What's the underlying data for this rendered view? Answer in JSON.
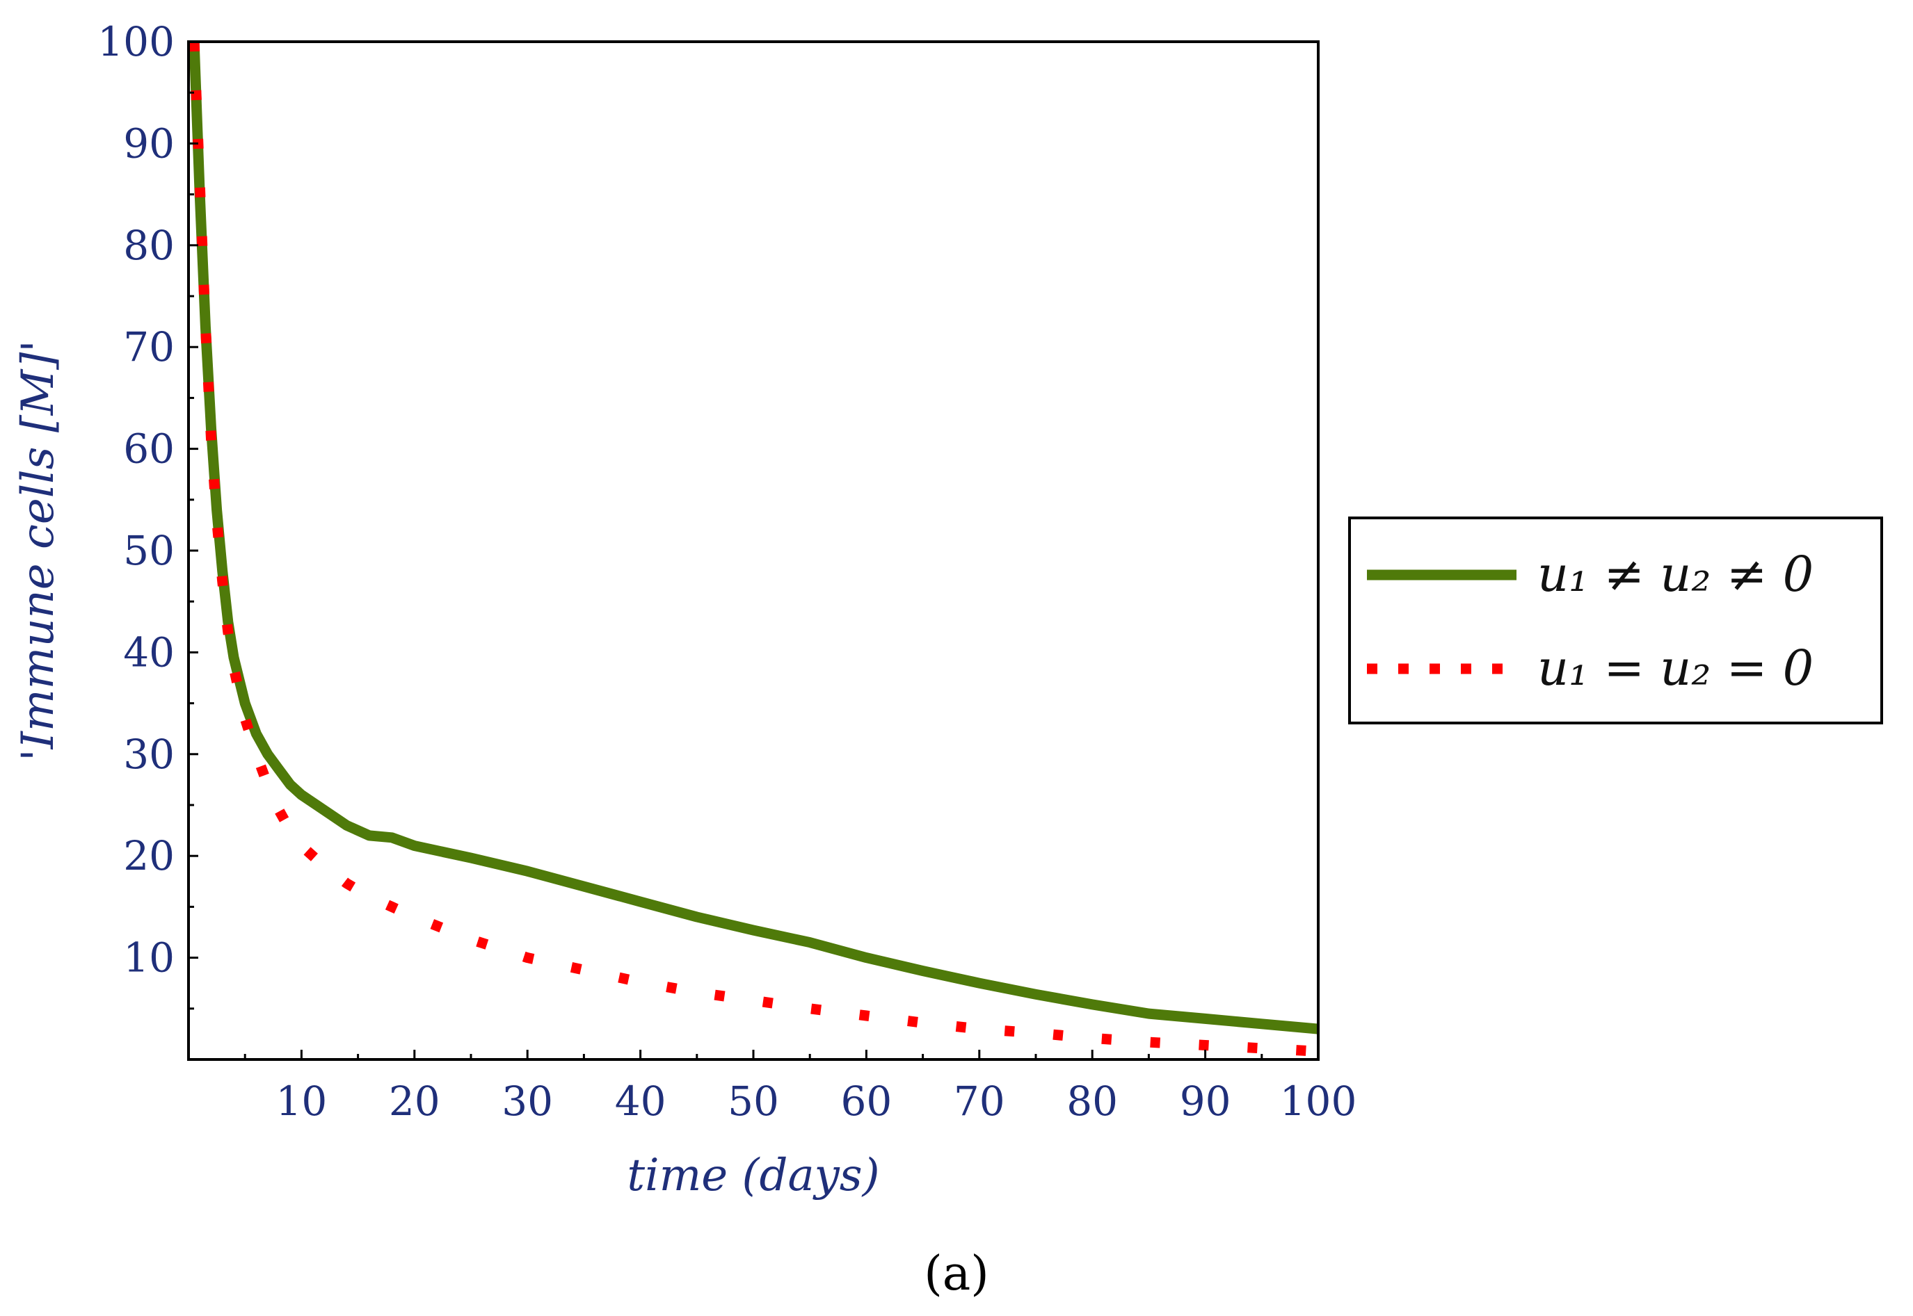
{
  "chart_data": {
    "type": "line",
    "title": "",
    "xlabel": "time (days)",
    "ylabel": "'Immune cells [M]'",
    "xlim": [
      0,
      100
    ],
    "ylim": [
      0,
      100
    ],
    "xticks": [
      10,
      20,
      30,
      40,
      50,
      60,
      70,
      80,
      90,
      100
    ],
    "yticks": [
      10,
      20,
      30,
      40,
      50,
      60,
      70,
      80,
      90,
      100
    ],
    "xtick_labels": [
      "10",
      "20",
      "30",
      "40",
      "50",
      "60",
      "70",
      "80",
      "90",
      "100"
    ],
    "ytick_labels": [
      "10",
      "20",
      "30",
      "40",
      "50",
      "60",
      "70",
      "80",
      "90",
      "100"
    ],
    "grid": false,
    "legend_position": "right",
    "caption": "(a)",
    "series": [
      {
        "name": "u1 ≠ u2 ≠ 0",
        "legend_label": "u₁ ≠ u₂ ≠ 0",
        "style": "solid",
        "color": "#4f7a0a",
        "x": [
          0.5,
          1,
          1.5,
          2,
          2.5,
          3,
          3.5,
          4,
          5,
          6,
          7,
          8,
          9,
          10,
          12,
          14,
          16,
          18,
          20,
          25,
          30,
          35,
          40,
          45,
          50,
          55,
          60,
          65,
          70,
          75,
          80,
          85,
          90,
          95,
          100
        ],
        "values": [
          100,
          85,
          72,
          62,
          54,
          48,
          43,
          39.5,
          35,
          32,
          30,
          28.5,
          27,
          26,
          24.5,
          23,
          22,
          21.8,
          21,
          19.8,
          18.5,
          17,
          15.5,
          14,
          12.7,
          11.5,
          10,
          8.7,
          7.5,
          6.4,
          5.4,
          4.5,
          4,
          3.5,
          3
        ]
      },
      {
        "name": "u1 = u2 = 0",
        "legend_label": "u₁ = u₂ = 0",
        "style": "dotted",
        "color": "#ff0000",
        "x": [
          0.5,
          1,
          1.5,
          2,
          2.5,
          3,
          3.5,
          4,
          5,
          6,
          7,
          8,
          9,
          10,
          12,
          14,
          16,
          18,
          20,
          25,
          30,
          35,
          40,
          45,
          50,
          55,
          60,
          65,
          70,
          75,
          80,
          85,
          90,
          95,
          100
        ],
        "values": [
          100,
          86,
          72,
          61,
          53,
          47,
          42,
          38.5,
          33.5,
          30,
          27,
          24.5,
          22.5,
          21,
          19,
          17.3,
          16,
          15,
          14,
          11.8,
          10,
          8.8,
          7.6,
          6.6,
          5.8,
          5,
          4.3,
          3.6,
          3,
          2.6,
          2.1,
          1.7,
          1.4,
          1.1,
          0.8
        ]
      }
    ]
  }
}
